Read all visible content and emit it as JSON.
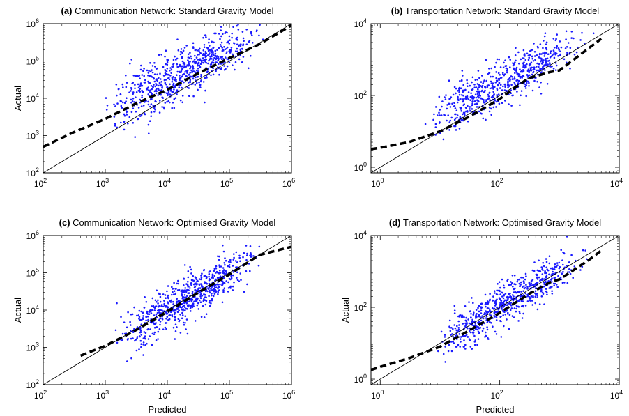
{
  "figure": {
    "colors": {
      "points": "#1a1aff",
      "fit_line": "#000000",
      "identity_line": "#000000",
      "axes": "#000000"
    }
  },
  "chart_data": [
    {
      "id": "a",
      "type": "scatter",
      "title_prefix": "(a)",
      "title": "Communication Network: Standard Gravity Model",
      "xlabel": "",
      "ylabel": "Actual",
      "x_scale": "log",
      "y_scale": "log",
      "xlim": [
        100,
        1000000
      ],
      "ylim": [
        100,
        1000000
      ],
      "x_ticks": [
        {
          "base": "10",
          "exp": "2",
          "value": 100
        },
        {
          "base": "10",
          "exp": "3",
          "value": 1000
        },
        {
          "base": "10",
          "exp": "4",
          "value": 10000
        },
        {
          "base": "10",
          "exp": "5",
          "value": 100000
        },
        {
          "base": "10",
          "exp": "6",
          "value": 1000000
        }
      ],
      "y_ticks": [
        {
          "base": "10",
          "exp": "2",
          "value": 100
        },
        {
          "base": "10",
          "exp": "3",
          "value": 1000
        },
        {
          "base": "10",
          "exp": "4",
          "value": 10000
        },
        {
          "base": "10",
          "exp": "5",
          "value": 100000
        },
        {
          "base": "10",
          "exp": "6",
          "value": 1000000
        }
      ],
      "identity_line": {
        "x": [
          100,
          1000000
        ],
        "y": [
          100,
          1000000
        ]
      },
      "fit_line": {
        "x": [
          100,
          300,
          1000,
          3000,
          10000,
          30000,
          100000,
          300000,
          1000000
        ],
        "y": [
          500,
          1200,
          2800,
          7000,
          17000,
          45000,
          120000,
          280000,
          900000
        ]
      },
      "scatter": {
        "n": 720,
        "x_range": [
          130,
          700000
        ],
        "bias_decades": [
          0.8,
          0.15
        ],
        "spread_decades": 0.38,
        "seed": 11
      }
    },
    {
      "id": "b",
      "type": "scatter",
      "title_prefix": "(b)",
      "title": "Transportation Network: Standard Gravity Model",
      "xlabel": "",
      "ylabel": "",
      "x_scale": "log",
      "y_scale": "log",
      "xlim": [
        0.7,
        10000
      ],
      "ylim": [
        0.7,
        10000
      ],
      "x_ticks": [
        {
          "base": "10",
          "exp": "0",
          "value": 1
        },
        {
          "base": "10",
          "exp": "2",
          "value": 100
        },
        {
          "base": "10",
          "exp": "4",
          "value": 10000
        }
      ],
      "y_ticks": [
        {
          "base": "10",
          "exp": "0",
          "value": 1
        },
        {
          "base": "10",
          "exp": "2",
          "value": 100
        },
        {
          "base": "10",
          "exp": "4",
          "value": 10000
        }
      ],
      "identity_line": {
        "x": [
          0.7,
          10000
        ],
        "y": [
          0.7,
          10000
        ]
      },
      "fit_line": {
        "x": [
          0.7,
          1,
          3,
          10,
          30,
          100,
          300,
          700,
          1000,
          3000,
          5000
        ],
        "y": [
          3.2,
          3.5,
          5,
          10,
          25,
          80,
          300,
          450,
          500,
          2000,
          3800
        ]
      },
      "scatter": {
        "n": 650,
        "x_range": [
          0.8,
          5000
        ],
        "bias_decades": [
          0.6,
          0.05
        ],
        "spread_decades": 0.35,
        "seed": 23,
        "integer_y": true
      }
    },
    {
      "id": "c",
      "type": "scatter",
      "title_prefix": "(c)",
      "title": "Communication Network: Optimised Gravity Model",
      "xlabel": "Predicted",
      "ylabel": "Actual",
      "x_scale": "log",
      "y_scale": "log",
      "xlim": [
        100,
        1000000
      ],
      "ylim": [
        100,
        1000000
      ],
      "x_ticks": [
        {
          "base": "10",
          "exp": "2",
          "value": 100
        },
        {
          "base": "10",
          "exp": "3",
          "value": 1000
        },
        {
          "base": "10",
          "exp": "4",
          "value": 10000
        },
        {
          "base": "10",
          "exp": "5",
          "value": 100000
        },
        {
          "base": "10",
          "exp": "6",
          "value": 1000000
        }
      ],
      "y_ticks": [
        {
          "base": "10",
          "exp": "2",
          "value": 100
        },
        {
          "base": "10",
          "exp": "3",
          "value": 1000
        },
        {
          "base": "10",
          "exp": "4",
          "value": 10000
        },
        {
          "base": "10",
          "exp": "5",
          "value": 100000
        },
        {
          "base": "10",
          "exp": "6",
          "value": 1000000
        }
      ],
      "identity_line": {
        "x": [
          100,
          1000000
        ],
        "y": [
          100,
          1000000
        ]
      },
      "fit_line": {
        "x": [
          400,
          1000,
          3000,
          10000,
          30000,
          100000,
          300000,
          1000000
        ],
        "y": [
          600,
          1100,
          2800,
          9000,
          28000,
          90000,
          300000,
          500000
        ]
      },
      "scatter": {
        "n": 700,
        "x_range": [
          250,
          500000
        ],
        "bias_decades": [
          0.0,
          0.0
        ],
        "spread_decades": 0.33,
        "seed": 37
      }
    },
    {
      "id": "d",
      "type": "scatter",
      "title_prefix": "(d)",
      "title": "Transportation Network: Optimised Gravity Model",
      "xlabel": "Predicted",
      "ylabel": "Actual",
      "x_scale": "log",
      "y_scale": "log",
      "xlim": [
        0.7,
        10000
      ],
      "ylim": [
        0.7,
        10000
      ],
      "x_ticks": [
        {
          "base": "10",
          "exp": "0",
          "value": 1
        },
        {
          "base": "10",
          "exp": "2",
          "value": 100
        },
        {
          "base": "10",
          "exp": "4",
          "value": 10000
        }
      ],
      "y_ticks": [
        {
          "base": "10",
          "exp": "0",
          "value": 1
        },
        {
          "base": "10",
          "exp": "2",
          "value": 100
        },
        {
          "base": "10",
          "exp": "4",
          "value": 10000
        }
      ],
      "identity_line": {
        "x": [
          0.7,
          10000
        ],
        "y": [
          0.7,
          10000
        ]
      },
      "fit_line": {
        "x": [
          0.7,
          1,
          3,
          10,
          30,
          100,
          300,
          700,
          1000,
          3000,
          5000
        ],
        "y": [
          1.8,
          2.2,
          3.8,
          8,
          22,
          70,
          230,
          500,
          600,
          2000,
          3800
        ]
      },
      "scatter": {
        "n": 650,
        "x_range": [
          1,
          5000
        ],
        "bias_decades": [
          0.0,
          0.0
        ],
        "spread_decades": 0.32,
        "seed": 53,
        "integer_y": true
      }
    }
  ]
}
